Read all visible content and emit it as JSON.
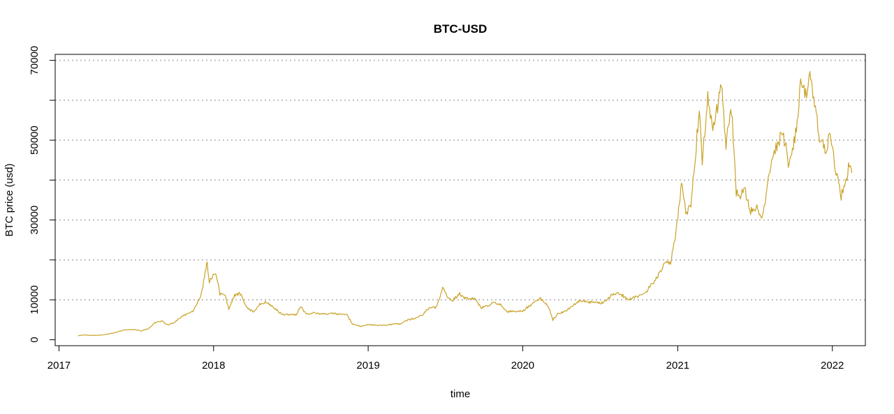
{
  "chart_data": {
    "type": "line",
    "title": "BTC-USD",
    "xlabel": "time",
    "ylabel": "BTC price (usd)",
    "xlim": [
      "2016-12-23",
      "2022-03-20"
    ],
    "ylim": [
      -1500,
      71500
    ],
    "x_ticks": [
      "2017",
      "2018",
      "2019",
      "2020",
      "2021",
      "2022"
    ],
    "x_tick_dates": [
      "2017-01-01",
      "2018-01-01",
      "2019-01-01",
      "2020-01-01",
      "2021-01-01",
      "2022-01-01"
    ],
    "y_ticks": [
      0,
      10000,
      30000,
      50000,
      70000
    ],
    "gridlines_y": [
      10000,
      20000,
      30000,
      40000,
      50000,
      60000,
      70000
    ],
    "grid": "horizontal dotted",
    "colors": {
      "line": "#C9A227",
      "grid": "#BEBEBE",
      "axis": "#000000"
    },
    "series": [
      {
        "x": [
          "2017-02-15",
          "2017-03-01",
          "2017-03-15",
          "2017-04-01",
          "2017-04-15",
          "2017-05-01",
          "2017-05-15",
          "2017-06-01",
          "2017-06-15",
          "2017-07-01",
          "2017-07-15",
          "2017-08-01",
          "2017-08-15",
          "2017-09-01",
          "2017-09-15",
          "2017-10-01",
          "2017-10-15",
          "2017-11-01",
          "2017-11-15",
          "2017-12-01",
          "2017-12-07",
          "2017-12-12",
          "2017-12-17",
          "2017-12-22",
          "2017-12-27",
          "2018-01-06",
          "2018-01-16",
          "2018-01-28",
          "2018-02-06",
          "2018-02-20",
          "2018-03-05",
          "2018-03-20",
          "2018-04-06",
          "2018-04-20",
          "2018-05-05",
          "2018-05-20",
          "2018-06-10",
          "2018-06-28",
          "2018-07-15",
          "2018-07-25",
          "2018-08-10",
          "2018-08-25",
          "2018-09-10",
          "2018-09-25",
          "2018-10-10",
          "2018-10-25",
          "2018-11-10",
          "2018-11-25",
          "2018-12-15",
          "2019-01-01",
          "2019-01-20",
          "2019-02-10",
          "2019-03-01",
          "2019-03-20",
          "2019-04-05",
          "2019-04-20",
          "2019-05-10",
          "2019-05-25",
          "2019-06-10",
          "2019-06-26",
          "2019-07-05",
          "2019-07-17",
          "2019-08-05",
          "2019-08-20",
          "2019-09-10",
          "2019-09-25",
          "2019-10-10",
          "2019-10-26",
          "2019-11-10",
          "2019-11-25",
          "2019-12-15",
          "2020-01-01",
          "2020-01-20",
          "2020-02-12",
          "2020-03-01",
          "2020-03-12",
          "2020-03-25",
          "2020-04-10",
          "2020-04-30",
          "2020-05-15",
          "2020-06-01",
          "2020-06-20",
          "2020-07-10",
          "2020-07-28",
          "2020-08-15",
          "2020-09-05",
          "2020-09-25",
          "2020-10-15",
          "2020-10-31",
          "2020-11-15",
          "2020-11-30",
          "2020-12-15",
          "2020-12-27",
          "2021-01-05",
          "2021-01-10",
          "2021-01-20",
          "2021-02-01",
          "2021-02-10",
          "2021-02-21",
          "2021-02-28",
          "2021-03-13",
          "2021-03-25",
          "2021-04-05",
          "2021-04-14",
          "2021-04-25",
          "2021-05-08",
          "2021-05-12",
          "2021-05-19",
          "2021-05-25",
          "2021-06-10",
          "2021-06-22",
          "2021-07-05",
          "2021-07-20",
          "2021-08-01",
          "2021-08-15",
          "2021-09-06",
          "2021-09-21",
          "2021-10-01",
          "2021-10-10",
          "2021-10-20",
          "2021-11-01",
          "2021-11-09",
          "2021-11-20",
          "2021-12-04",
          "2021-12-15",
          "2021-12-27",
          "2022-01-10",
          "2022-01-22",
          "2022-02-01",
          "2022-02-10",
          "2022-02-16"
        ],
        "y": [
          1000,
          1200,
          1100,
          1100,
          1200,
          1500,
          1800,
          2400,
          2500,
          2500,
          2200,
          2800,
          4200,
          4700,
          3700,
          4300,
          5600,
          6600,
          7300,
          10800,
          13500,
          17000,
          19300,
          14000,
          15500,
          17000,
          11500,
          11500,
          7700,
          11200,
          11500,
          8200,
          6800,
          8900,
          9500,
          8200,
          6500,
          6200,
          6300,
          8200,
          6300,
          6700,
          6500,
          6400,
          6600,
          6400,
          6400,
          4000,
          3300,
          3800,
          3600,
          3600,
          3900,
          4000,
          5000,
          5300,
          6300,
          8000,
          8000,
          13000,
          11000,
          9700,
          11500,
          10200,
          10300,
          8000,
          8500,
          9300,
          8800,
          7000,
          7100,
          7200,
          8700,
          10300,
          8600,
          4900,
          6700,
          7000,
          8800,
          9800,
          9500,
          9300,
          9300,
          11000,
          11800,
          10100,
          10700,
          11500,
          13800,
          16000,
          19200,
          19300,
          26200,
          34000,
          40500,
          32000,
          33000,
          44500,
          57500,
          45000,
          61000,
          52000,
          58500,
          63500,
          49000,
          58000,
          50000,
          37000,
          36000,
          37000,
          32000,
          33500,
          30500,
          39000,
          46000,
          52500,
          43000,
          48000,
          55000,
          66000,
          61000,
          67500,
          58000,
          50000,
          47000,
          51000,
          42000,
          36000,
          38500,
          44500,
          41800
        ]
      }
    ]
  }
}
